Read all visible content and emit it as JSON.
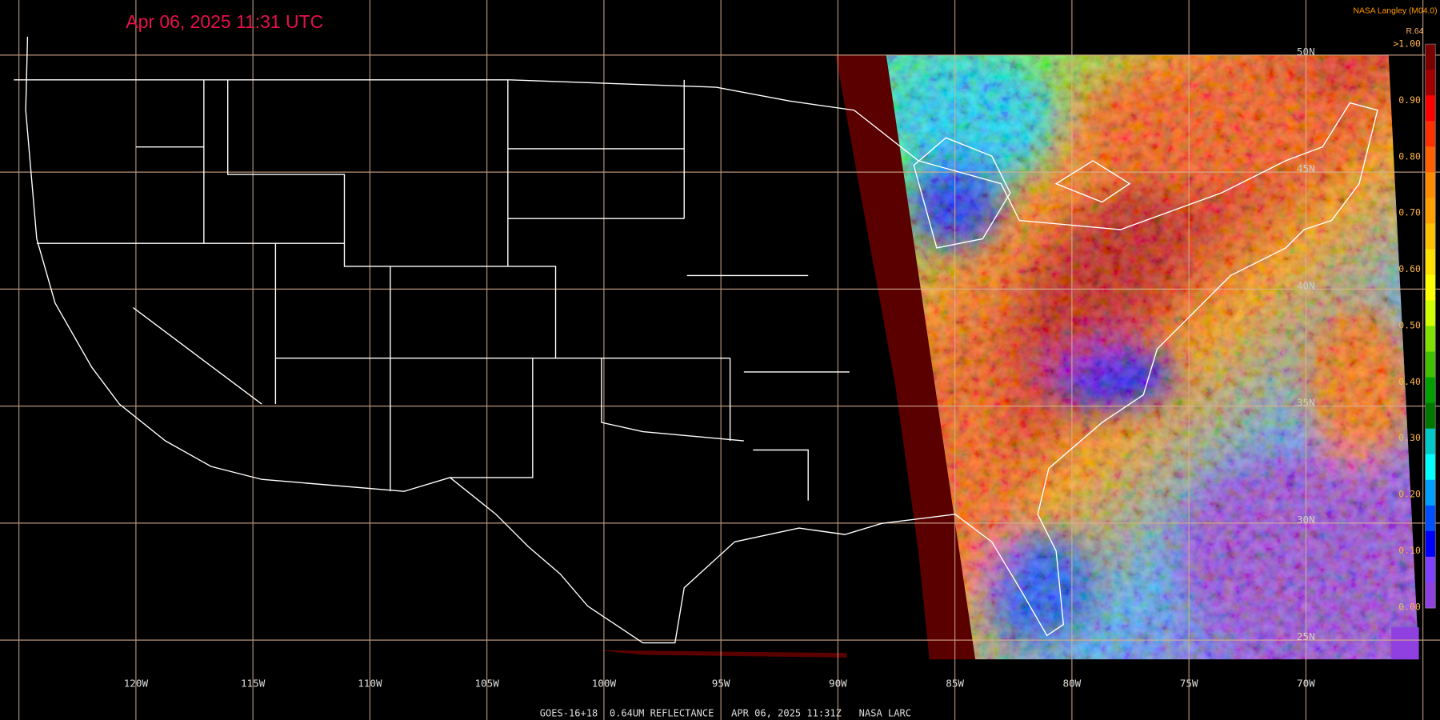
{
  "header": {
    "title": "Apr 06, 2025 11:31 UTC",
    "source": "NASA Langley (M04.0)",
    "product": "R.64"
  },
  "colorbar": {
    "labels": [
      ">1.00",
      "0.90",
      "0.80",
      "0.70",
      "0.60",
      "0.50",
      "0.40",
      "0.30",
      "0.20",
      "0.10",
      "0.00"
    ],
    "colors": [
      "#7a0000",
      "#a00000",
      "#ff0000",
      "#ff3000",
      "#ff6000",
      "#ff8c00",
      "#ffa000",
      "#ffc000",
      "#ffe000",
      "#ffff00",
      "#d0ff00",
      "#80e000",
      "#40c000",
      "#00a000",
      "#007800",
      "#00c8c8",
      "#00ffff",
      "#00a0ff",
      "#0050ff",
      "#0000ff",
      "#8040ff",
      "#9040e0"
    ]
  },
  "grid": {
    "longitude_labels": [
      "120W",
      "115W",
      "110W",
      "105W",
      "100W",
      "95W",
      "90W",
      "85W",
      "80W",
      "75W",
      "70W"
    ],
    "latitude_labels": [
      "50N",
      "45N",
      "40N",
      "35N",
      "30N",
      "25N"
    ]
  },
  "footer": {
    "caption": "GOES-16+18  0.64UM REFLECTANCE   APR 06, 2025 11:31Z   NASA LARC"
  }
}
